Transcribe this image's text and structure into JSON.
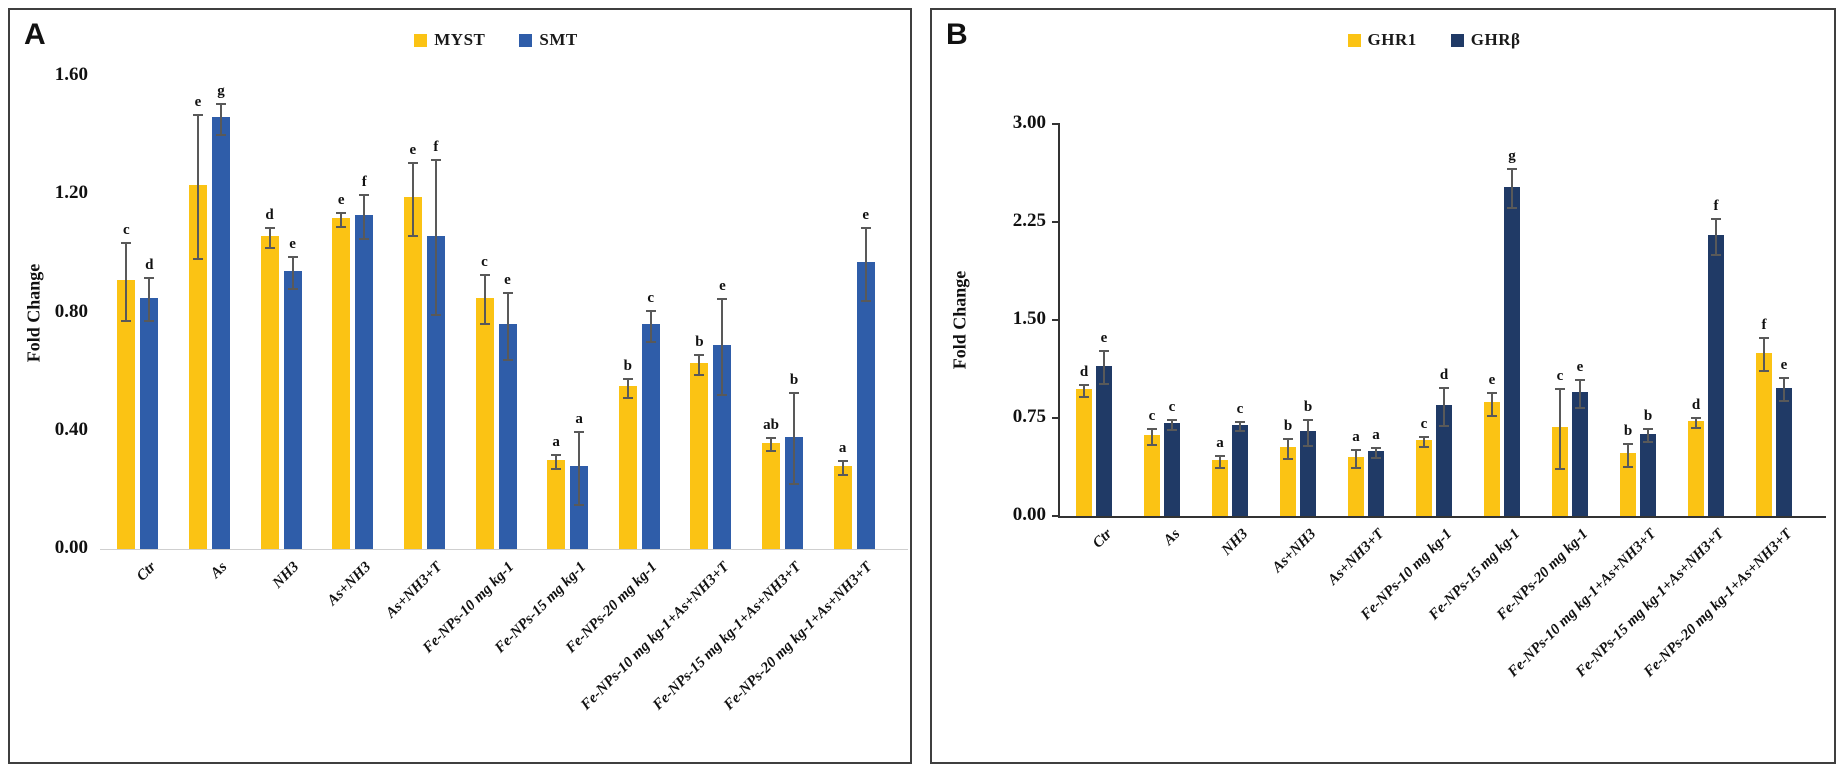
{
  "figure": {
    "background": "#ffffff",
    "error_bar_color": "#595959"
  },
  "chart_data": [
    {
      "panel": "A",
      "type": "bar",
      "ylabel": "Fold Change",
      "ylim": [
        0,
        1.6
      ],
      "yticks": [
        "0.00",
        "0.40",
        "0.80",
        "1.20",
        "1.60"
      ],
      "grid": "off",
      "legend_position": "top-center",
      "categories": [
        "Ctr",
        "As",
        "NH3",
        "As+NH3",
        "As+NH3+T",
        "Fe-NPs-10 mg kg-1",
        "Fe-NPs-15 mg kg-1",
        "Fe-NPs-20 mg kg-1",
        "Fe-NPs-10 mg kg-1+As+NH3+T",
        "Fe-NPs-15 mg kg-1+As+NH3+T",
        "Fe-NPs-20 mg kg-1+As+NH3+T"
      ],
      "series": [
        {
          "name": "MYST",
          "color": "#FBC314",
          "values": [
            0.91,
            1.23,
            1.06,
            1.12,
            1.19,
            0.85,
            0.3,
            0.55,
            0.63,
            0.36,
            0.28
          ],
          "errors": [
            0.13,
            0.24,
            0.03,
            0.02,
            0.12,
            0.08,
            0.02,
            0.03,
            0.03,
            0.02,
            0.02
          ],
          "letters": [
            "c",
            "e",
            "d",
            "e",
            "e",
            "c",
            "a",
            "b",
            "b",
            "ab",
            "a"
          ]
        },
        {
          "name": "SMT",
          "color": "#2F5DA9",
          "values": [
            0.85,
            1.46,
            0.94,
            1.13,
            1.06,
            0.76,
            0.28,
            0.76,
            0.69,
            0.38,
            0.97
          ],
          "errors": [
            0.07,
            0.05,
            0.05,
            0.07,
            0.26,
            0.11,
            0.12,
            0.05,
            0.16,
            0.15,
            0.12
          ],
          "letters": [
            "d",
            "g",
            "e",
            "f",
            "f",
            "e",
            "a",
            "c",
            "e",
            "b",
            "e"
          ]
        }
      ]
    },
    {
      "panel": "B",
      "type": "bar",
      "ylabel": "Fold Change",
      "ylim": [
        0,
        3.0
      ],
      "yticks": [
        "0.00",
        "0.75",
        "1.50",
        "2.25",
        "3.00"
      ],
      "grid": "off",
      "legend_position": "top-center",
      "categories": [
        "Ctr",
        "As",
        "NH3",
        "As+NH3",
        "As+NH3+T",
        "Fe-NPs-10 mg kg-1",
        "Fe-NPs-15 mg kg-1",
        "Fe-NPs-20 mg kg-1",
        "Fe-NPs-10 mg kg-1+As+NH3+T",
        "Fe-NPs-15 mg kg-1+As+NH3+T",
        "Fe-NPs-20 mg kg-1+As+NH3+T"
      ],
      "series": [
        {
          "name": "GHR1",
          "color": "#FBC314",
          "values": [
            0.97,
            0.62,
            0.43,
            0.53,
            0.45,
            0.58,
            0.87,
            0.68,
            0.48,
            0.73,
            1.25
          ],
          "errors": [
            0.04,
            0.05,
            0.04,
            0.07,
            0.06,
            0.03,
            0.08,
            0.3,
            0.08,
            0.03,
            0.12
          ],
          "letters": [
            "d",
            "c",
            "a",
            "b",
            "a",
            "c",
            "e",
            "c",
            "b",
            "d",
            "f"
          ]
        },
        {
          "name": "GHRβ",
          "color": "#203A66",
          "values": [
            1.15,
            0.71,
            0.7,
            0.65,
            0.5,
            0.85,
            2.52,
            0.95,
            0.63,
            2.15,
            0.98
          ],
          "errors": [
            0.12,
            0.03,
            0.03,
            0.09,
            0.03,
            0.14,
            0.14,
            0.1,
            0.04,
            0.13,
            0.08
          ],
          "letters": [
            "e",
            "c",
            "c",
            "b",
            "a",
            "d",
            "g",
            "e",
            "b",
            "f",
            "e"
          ]
        }
      ]
    }
  ]
}
